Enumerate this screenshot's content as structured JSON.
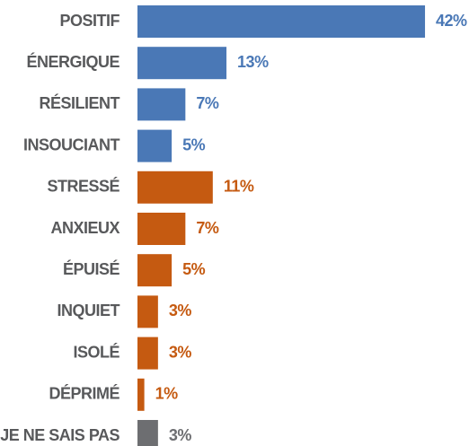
{
  "chart_data": {
    "type": "bar",
    "orientation": "horizontal",
    "categories": [
      "POSITIF",
      "ÉNERGIQUE",
      "RÉSILIENT",
      "INSOUCIANT",
      "STRESSÉ",
      "ANXIEUX",
      "ÉPUISÉ",
      "INQUIET",
      "ISOLÉ",
      "DÉPRIMÉ",
      "JE NE SAIS PAS"
    ],
    "values": [
      42,
      13,
      7,
      5,
      11,
      7,
      5,
      3,
      3,
      1,
      3
    ],
    "value_labels": [
      "42%",
      "13%",
      "7%",
      "5%",
      "11%",
      "7%",
      "5%",
      "3%",
      "3%",
      "1%",
      "3%"
    ],
    "colors": [
      "#4a78b6",
      "#4a78b6",
      "#4a78b6",
      "#4a78b6",
      "#c55a11",
      "#c55a11",
      "#c55a11",
      "#c55a11",
      "#c55a11",
      "#c55a11",
      "#6d6e71"
    ]
  }
}
